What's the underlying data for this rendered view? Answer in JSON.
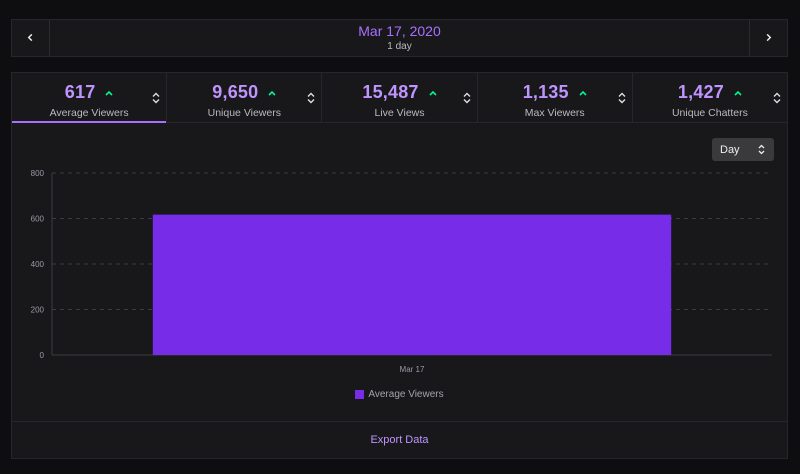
{
  "date_nav": {
    "title": "Mar 17, 2020",
    "subtitle": "1 day"
  },
  "stats": [
    {
      "value": "617",
      "label": "Average Viewers",
      "trend": "up",
      "active": true
    },
    {
      "value": "9,650",
      "label": "Unique Viewers",
      "trend": "up",
      "active": false
    },
    {
      "value": "15,487",
      "label": "Live Views",
      "trend": "up",
      "active": false
    },
    {
      "value": "1,135",
      "label": "Max Viewers",
      "trend": "up",
      "active": false
    },
    {
      "value": "1,427",
      "label": "Unique Chatters",
      "trend": "up",
      "active": false
    }
  ],
  "interval": {
    "selected": "Day"
  },
  "chart_data": {
    "type": "bar",
    "categories": [
      "Mar 17"
    ],
    "series": [
      {
        "name": "Average Viewers",
        "values": [
          617
        ],
        "color": "#772ce8"
      }
    ],
    "ylim": [
      0,
      800
    ],
    "yticks": [
      0,
      200,
      400,
      600,
      800
    ],
    "grid": true,
    "legend": "bottom-center"
  },
  "colors": {
    "accent": "#a970ff",
    "value_text": "#bf94ff",
    "bar": "#772ce8",
    "trend_up": "#00f593",
    "background": "#0e0e10",
    "panel": "#18181b"
  },
  "footer": {
    "export_label": "Export Data"
  }
}
